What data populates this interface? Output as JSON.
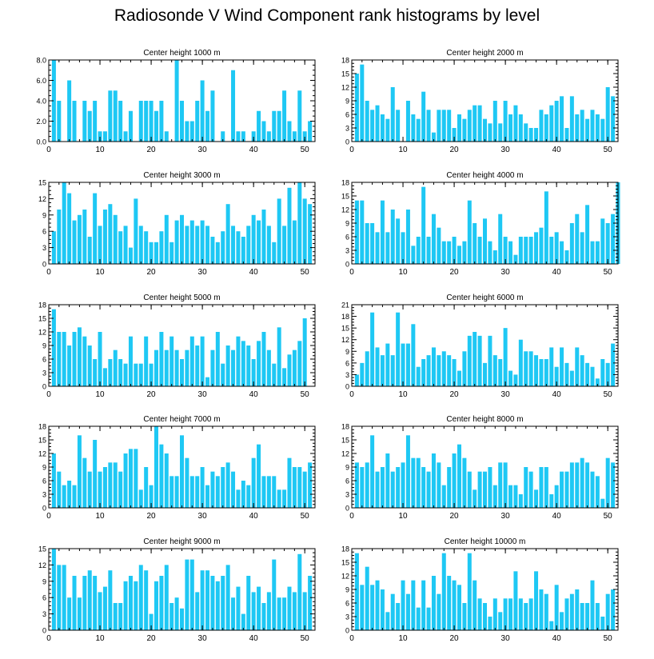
{
  "title": "Radiosonde V Wind Component rank histograms by level",
  "colors": {
    "bar": "#1ec8f4",
    "axis": "#000000",
    "background": "#ffffff"
  },
  "chart_data": [
    {
      "type": "bar",
      "title": "Center height 1000 m",
      "x_start": 1,
      "xlim": [
        0,
        52
      ],
      "ylim": [
        0,
        8
      ],
      "yticks": [
        0,
        2,
        4,
        6,
        8
      ],
      "ytick_labels": [
        "0.0",
        "2.0",
        "4.0",
        "6.0",
        "8.0"
      ],
      "xticks": [
        0,
        10,
        20,
        30,
        40,
        50
      ],
      "values": [
        8,
        4,
        0,
        6,
        4,
        0,
        4,
        3,
        4,
        1,
        1,
        5,
        5,
        4,
        1,
        3,
        0,
        4,
        4,
        4,
        3,
        4,
        1,
        0,
        8,
        4,
        2,
        2,
        4,
        6,
        3,
        5,
        0,
        1,
        0,
        7,
        1,
        1,
        0,
        1,
        3,
        2,
        1,
        3,
        3,
        5,
        2,
        1,
        5,
        1,
        2
      ]
    },
    {
      "type": "bar",
      "title": "Center height 2000 m",
      "x_start": 1,
      "xlim": [
        0,
        52
      ],
      "ylim": [
        0,
        18
      ],
      "yticks": [
        0,
        3,
        6,
        9,
        12,
        15,
        18
      ],
      "ytick_labels": [
        "0",
        "3",
        "6",
        "9",
        "12",
        "15",
        "18"
      ],
      "xticks": [
        0,
        10,
        20,
        30,
        40,
        50
      ],
      "values": [
        15,
        17,
        9,
        7,
        8,
        6,
        5,
        12,
        7,
        0,
        9,
        6,
        5,
        11,
        7,
        2,
        7,
        7,
        7,
        3,
        6,
        5,
        7,
        8,
        8,
        5,
        4,
        9,
        4,
        9,
        6,
        8,
        6,
        4,
        3,
        3,
        7,
        6,
        8,
        9,
        10,
        3,
        10,
        6,
        7,
        5,
        7,
        6,
        5,
        12,
        10
      ]
    },
    {
      "type": "bar",
      "title": "Center height 3000 m",
      "x_start": 1,
      "xlim": [
        0,
        52
      ],
      "ylim": [
        0,
        15
      ],
      "yticks": [
        0,
        3,
        6,
        9,
        12,
        15
      ],
      "ytick_labels": [
        "0",
        "3",
        "6",
        "9",
        "12",
        "15"
      ],
      "xticks": [
        0,
        10,
        20,
        30,
        40,
        50
      ],
      "values": [
        6,
        10,
        15,
        13,
        8,
        9,
        10,
        5,
        13,
        7,
        10,
        11,
        9,
        6,
        7,
        3,
        12,
        7,
        6,
        4,
        4,
        6,
        9,
        4,
        8,
        9,
        7,
        8,
        7,
        8,
        7,
        5,
        4,
        6,
        11,
        7,
        6,
        5,
        7,
        9,
        8,
        10,
        7,
        4,
        12,
        7,
        14,
        8,
        15,
        12,
        11
      ]
    },
    {
      "type": "bar",
      "title": "Center height 4000 m",
      "x_start": 1,
      "xlim": [
        0,
        52
      ],
      "ylim": [
        0,
        18
      ],
      "yticks": [
        0,
        3,
        6,
        9,
        12,
        15,
        18
      ],
      "ytick_labels": [
        "0",
        "3",
        "6",
        "9",
        "12",
        "15",
        "18"
      ],
      "xticks": [
        0,
        10,
        20,
        30,
        40,
        50
      ],
      "values": [
        14,
        14,
        9,
        9,
        7,
        14,
        7,
        12,
        10,
        7,
        12,
        4,
        6,
        17,
        6,
        11,
        8,
        5,
        5,
        6,
        4,
        5,
        14,
        9,
        6,
        10,
        5,
        3,
        11,
        6,
        5,
        2,
        6,
        6,
        6,
        7,
        8,
        16,
        6,
        7,
        5,
        3,
        9,
        11,
        7,
        13,
        5,
        5,
        10,
        9,
        11,
        18
      ]
    },
    {
      "type": "bar",
      "title": "Center height 5000 m",
      "x_start": 1,
      "xlim": [
        0,
        52
      ],
      "ylim": [
        0,
        18
      ],
      "yticks": [
        0,
        3,
        6,
        9,
        12,
        15,
        18
      ],
      "ytick_labels": [
        "0",
        "3",
        "6",
        "9",
        "12",
        "15",
        "18"
      ],
      "xticks": [
        0,
        10,
        20,
        30,
        40,
        50
      ],
      "values": [
        17,
        12,
        12,
        9,
        12,
        13,
        11,
        9,
        6,
        12,
        4,
        6,
        8,
        6,
        5,
        11,
        5,
        5,
        11,
        5,
        8,
        12,
        8,
        11,
        8,
        6,
        8,
        11,
        9,
        11,
        2,
        8,
        12,
        5,
        9,
        8,
        11,
        10,
        9,
        6,
        10,
        12,
        8,
        5,
        13,
        4,
        7,
        8,
        10,
        15
      ]
    },
    {
      "type": "bar",
      "title": "Center height 6000 m",
      "x_start": 1,
      "xlim": [
        0,
        52
      ],
      "ylim": [
        0,
        21
      ],
      "yticks": [
        0,
        3,
        6,
        9,
        12,
        15,
        18,
        21
      ],
      "ytick_labels": [
        "0",
        "3",
        "6",
        "9",
        "12",
        "15",
        "18",
        "21"
      ],
      "xticks": [
        0,
        10,
        20,
        30,
        40,
        50
      ],
      "values": [
        3,
        6,
        9,
        19,
        10,
        8,
        11,
        8,
        19,
        11,
        11,
        16,
        5,
        7,
        8,
        10,
        8,
        9,
        8,
        7,
        4,
        9,
        13,
        14,
        13,
        6,
        13,
        8,
        7,
        15,
        4,
        3,
        12,
        9,
        9,
        8,
        7,
        7,
        10,
        5,
        10,
        6,
        4,
        10,
        8,
        6,
        5,
        2,
        7,
        6,
        11
      ]
    },
    {
      "type": "bar",
      "title": "Center height 7000 m",
      "x_start": 1,
      "xlim": [
        0,
        52
      ],
      "ylim": [
        0,
        18
      ],
      "yticks": [
        0,
        3,
        6,
        9,
        12,
        15,
        18
      ],
      "ytick_labels": [
        "0",
        "3",
        "6",
        "9",
        "12",
        "15",
        "18"
      ],
      "xticks": [
        0,
        10,
        20,
        30,
        40,
        50
      ],
      "values": [
        12,
        8,
        5,
        6,
        5,
        16,
        11,
        8,
        15,
        8,
        9,
        10,
        10,
        8,
        12,
        13,
        13,
        4,
        9,
        5,
        18,
        14,
        12,
        7,
        7,
        16,
        11,
        7,
        7,
        9,
        5,
        8,
        7,
        9,
        10,
        8,
        4,
        6,
        5,
        11,
        14,
        7,
        7,
        7,
        4,
        4,
        11,
        9,
        9,
        8,
        10
      ]
    },
    {
      "type": "bar",
      "title": "Center height 8000 m",
      "x_start": 1,
      "xlim": [
        0,
        52
      ],
      "ylim": [
        0,
        18
      ],
      "yticks": [
        0,
        3,
        6,
        9,
        12,
        15,
        18
      ],
      "ytick_labels": [
        "0",
        "3",
        "6",
        "9",
        "12",
        "15",
        "18"
      ],
      "xticks": [
        0,
        10,
        20,
        30,
        40,
        50
      ],
      "values": [
        10,
        9,
        10,
        16,
        8,
        9,
        12,
        8,
        9,
        10,
        16,
        11,
        11,
        9,
        8,
        12,
        10,
        5,
        9,
        12,
        14,
        11,
        8,
        4,
        8,
        8,
        9,
        5,
        10,
        10,
        5,
        5,
        3,
        9,
        8,
        4,
        9,
        9,
        3,
        5,
        8,
        8,
        10,
        10,
        11,
        10,
        8,
        7,
        2,
        11,
        10
      ]
    },
    {
      "type": "bar",
      "title": "Center height 9000 m",
      "x_start": 1,
      "xlim": [
        0,
        52
      ],
      "ylim": [
        0,
        15
      ],
      "yticks": [
        0,
        3,
        6,
        9,
        12,
        15
      ],
      "ytick_labels": [
        "0",
        "3",
        "6",
        "9",
        "12",
        "15"
      ],
      "xticks": [
        0,
        10,
        20,
        30,
        40,
        50
      ],
      "values": [
        15,
        12,
        12,
        6,
        10,
        6,
        10,
        11,
        10,
        7,
        8,
        11,
        5,
        5,
        9,
        10,
        9,
        12,
        11,
        3,
        9,
        10,
        12,
        5,
        6,
        4,
        13,
        13,
        7,
        11,
        11,
        10,
        9,
        10,
        12,
        6,
        8,
        3,
        10,
        7,
        8,
        5,
        7,
        13,
        6,
        6,
        8,
        7,
        14,
        7,
        10
      ]
    },
    {
      "type": "bar",
      "title": "Center height 10000 m",
      "x_start": 1,
      "xlim": [
        0,
        52
      ],
      "ylim": [
        0,
        18
      ],
      "yticks": [
        0,
        3,
        6,
        9,
        12,
        15,
        18
      ],
      "ytick_labels": [
        "0",
        "3",
        "6",
        "9",
        "12",
        "15",
        "18"
      ],
      "xticks": [
        0,
        10,
        20,
        30,
        40,
        50
      ],
      "values": [
        17,
        10,
        14,
        10,
        11,
        9,
        4,
        8,
        6,
        11,
        8,
        11,
        5,
        11,
        5,
        12,
        8,
        17,
        12,
        11,
        10,
        6,
        17,
        11,
        7,
        6,
        3,
        7,
        4,
        7,
        7,
        13,
        7,
        6,
        7,
        13,
        9,
        8,
        2,
        10,
        4,
        7,
        8,
        9,
        6,
        6,
        11,
        6,
        3,
        8,
        9
      ]
    }
  ]
}
